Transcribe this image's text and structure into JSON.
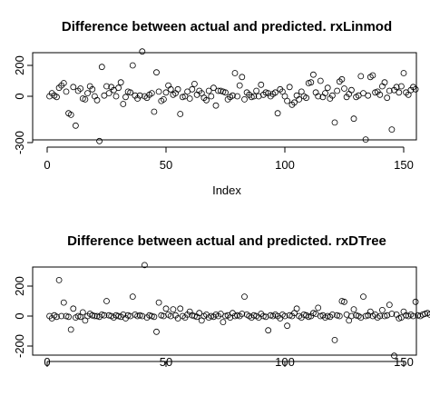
{
  "chart_data": [
    {
      "type": "scatter",
      "title": "Difference between actual and predicted. rxLinmod",
      "xlabel": "Index",
      "ylabel": "",
      "xlim": [
        0,
        150
      ],
      "ylim": [
        -300,
        300
      ],
      "xticks": [
        0,
        50,
        100,
        150
      ],
      "yticks": [
        -300,
        0,
        200
      ],
      "xtick_labels": [
        "0",
        "50",
        "100",
        "150"
      ],
      "ytick_labels": [
        "-300",
        "0",
        "200"
      ],
      "grid": false,
      "series": [
        {
          "values": [
            0,
            20,
            5,
            -5,
            55,
            70,
            85,
            30,
            -110,
            -120,
            60,
            -190,
            35,
            50,
            -15,
            -20,
            20,
            65,
            45,
            0,
            -25,
            -290,
            190,
            5,
            65,
            20,
            60,
            40,
            0,
            55,
            90,
            -50,
            -5,
            30,
            25,
            200,
            5,
            -15,
            5,
            290,
            0,
            -10,
            10,
            20,
            -100,
            155,
            30,
            -30,
            -20,
            25,
            70,
            45,
            10,
            20,
            45,
            -115,
            -5,
            0,
            30,
            -15,
            45,
            80,
            10,
            35,
            20,
            -10,
            -25,
            35,
            0,
            55,
            -60,
            35,
            35,
            30,
            25,
            -20,
            -5,
            5,
            150,
            0,
            70,
            125,
            -20,
            25,
            10,
            -5,
            0,
            35,
            0,
            75,
            10,
            25,
            20,
            0,
            15,
            25,
            -110,
            45,
            30,
            0,
            -30,
            60,
            -55,
            -40,
            5,
            -20,
            30,
            0,
            -10,
            85,
            90,
            140,
            25,
            0,
            100,
            -5,
            20,
            55,
            -15,
            5,
            -170,
            35,
            95,
            110,
            50,
            -5,
            15,
            40,
            -145,
            -5,
            5,
            130,
            20,
            -280,
            5,
            125,
            135,
            25,
            30,
            10,
            65,
            90,
            -10,
            35,
            -215,
            40,
            60,
            25,
            65,
            150,
            25,
            10,
            40,
            60,
            45
          ]
        }
      ]
    },
    {
      "type": "scatter",
      "title": "Difference between actual and predicted. rxDTree",
      "xlabel": "",
      "ylabel": "",
      "xlim": [
        0,
        150
      ],
      "ylim": [
        -300,
        300
      ],
      "xticks": [
        0,
        50,
        100,
        150
      ],
      "yticks": [
        -200,
        0,
        200
      ],
      "xtick_labels": [
        "0",
        "50",
        "100",
        "150"
      ],
      "ytick_labels": [
        "-200",
        "0",
        "200"
      ],
      "grid": false,
      "series": [
        {
          "values": [
            0,
            -15,
            5,
            -5,
            240,
            0,
            90,
            0,
            -5,
            -90,
            50,
            -10,
            0,
            -5,
            25,
            -30,
            0,
            15,
            5,
            0,
            0,
            -5,
            10,
            5,
            100,
            5,
            0,
            -10,
            5,
            0,
            -5,
            10,
            -15,
            5,
            0,
            130,
            10,
            0,
            5,
            0,
            340,
            -10,
            5,
            0,
            -5,
            -105,
            90,
            5,
            0,
            50,
            10,
            0,
            45,
            5,
            -15,
            50,
            0,
            -10,
            10,
            30,
            5,
            0,
            -5,
            20,
            -30,
            0,
            10,
            -10,
            0,
            -5,
            10,
            0,
            15,
            -40,
            0,
            5,
            -10,
            20,
            0,
            5,
            0,
            15,
            130,
            10,
            0,
            -10,
            5,
            0,
            -10,
            15,
            0,
            -5,
            -95,
            5,
            0,
            10,
            0,
            -15,
            10,
            0,
            -65,
            5,
            0,
            20,
            50,
            0,
            -10,
            10,
            5,
            -5,
            0,
            20,
            15,
            55,
            0,
            5,
            -10,
            0,
            -5,
            10,
            -160,
            5,
            0,
            100,
            95,
            10,
            -30,
            0,
            45,
            5,
            0,
            -10,
            130,
            0,
            5,
            30,
            0,
            10,
            -10,
            0,
            40,
            0,
            5,
            75,
            15,
            -265,
            10,
            -15,
            -10,
            30,
            5,
            0,
            10,
            0,
            95,
            5,
            0,
            10,
            15,
            20,
            10
          ]
        }
      ]
    }
  ]
}
